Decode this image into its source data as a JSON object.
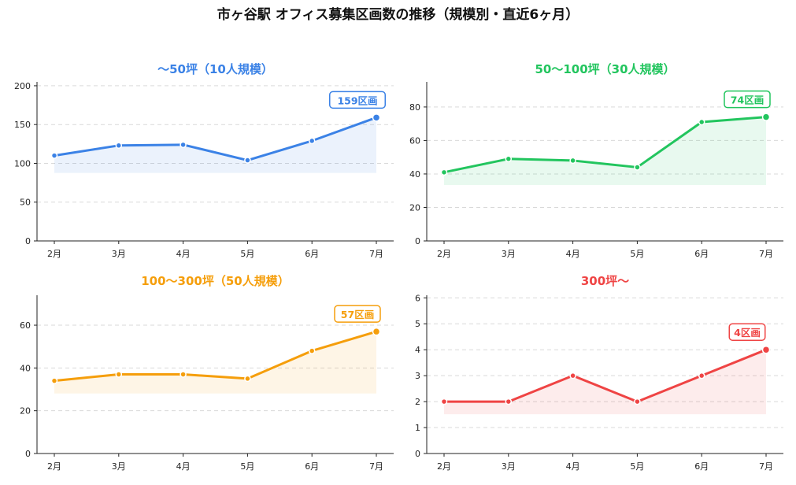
{
  "title": "市ヶ谷駅 オフィス募集区画数の推移（規模別・直近6ヶ月）",
  "chart_data": [
    {
      "type": "line",
      "title": "〜50坪（10人規模）",
      "color": "#3b82e6",
      "categories": [
        "2月",
        "3月",
        "4月",
        "5月",
        "6月",
        "7月"
      ],
      "values": [
        110,
        123,
        124,
        104,
        129,
        159
      ],
      "yticks": [
        0,
        50,
        100,
        150,
        200
      ],
      "ylim": [
        0,
        205
      ],
      "callout": "159区画",
      "grid": true
    },
    {
      "type": "line",
      "title": "50〜100坪（30人規模）",
      "color": "#22c55e",
      "categories": [
        "2月",
        "3月",
        "4月",
        "5月",
        "6月",
        "7月"
      ],
      "values": [
        41,
        49,
        48,
        44,
        71,
        74
      ],
      "yticks": [
        0,
        20,
        40,
        60,
        80
      ],
      "ylim": [
        0,
        95
      ],
      "callout": "74区画",
      "grid": true
    },
    {
      "type": "line",
      "title": "100〜300坪（50人規模）",
      "color": "#f59e0b",
      "categories": [
        "2月",
        "3月",
        "4月",
        "5月",
        "6月",
        "7月"
      ],
      "values": [
        34,
        37,
        37,
        35,
        48,
        57
      ],
      "yticks": [
        0,
        20,
        40,
        60
      ],
      "ylim": [
        0,
        74
      ],
      "callout": "57区画",
      "grid": true
    },
    {
      "type": "line",
      "title": "300坪〜",
      "color": "#ef4444",
      "categories": [
        "2月",
        "3月",
        "4月",
        "5月",
        "6月",
        "7月"
      ],
      "values": [
        2,
        2,
        3,
        2,
        3,
        4
      ],
      "yticks": [
        0,
        1,
        2,
        3,
        4,
        5,
        6
      ],
      "ylim": [
        0,
        6.1
      ],
      "callout": "4区画",
      "grid": true
    }
  ]
}
